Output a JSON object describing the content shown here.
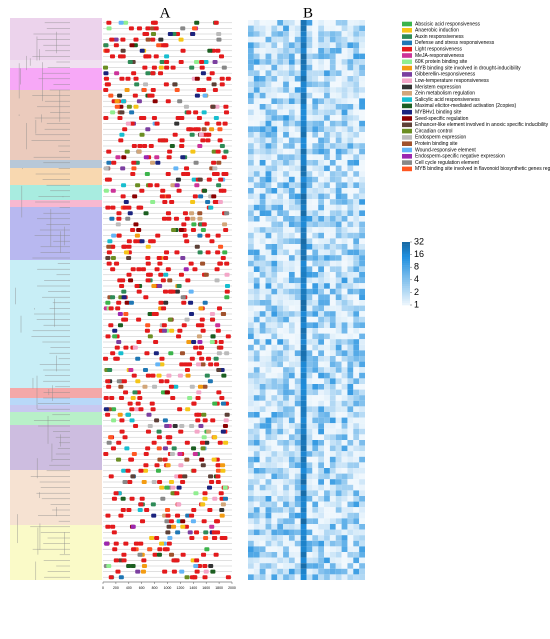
{
  "panel_a": {
    "label": "A",
    "xlim": [
      0,
      2000
    ],
    "xticks": [
      0,
      200,
      400,
      600,
      800,
      1000,
      1200,
      1400,
      1600,
      1800,
      2000
    ]
  },
  "panel_b": {
    "label": "B",
    "scale": {
      "lim": [
        1,
        32
      ],
      "ticks": [
        32,
        16,
        8,
        4,
        2,
        1
      ],
      "log": true
    }
  },
  "legend": [
    {
      "name": "Abscisic acid responsiveness",
      "color": "#3cb44b"
    },
    {
      "name": "Anaerobic induction",
      "color": "#f5c518"
    },
    {
      "name": "Auxin responsiveness",
      "color": "#2e8b57"
    },
    {
      "name": "Defense and stress responsiveness",
      "color": "#1f77b4"
    },
    {
      "name": "Light responsiveness",
      "color": "#e31a1c"
    },
    {
      "name": "MeJA-responsiveness",
      "color": "#cc3399"
    },
    {
      "name": "60K protein binding site",
      "color": "#90ee90"
    },
    {
      "name": "MYB binding site involved in drought-inducibility",
      "color": "#f39c12"
    },
    {
      "name": "Gibberellin-responsiveness",
      "color": "#7b3fa0"
    },
    {
      "name": "Low-temperature responsiveness",
      "color": "#f4a6c8"
    },
    {
      "name": "Meristem expression",
      "color": "#333333"
    },
    {
      "name": "Zein metabolism regulation",
      "color": "#d2a679"
    },
    {
      "name": "Salicylic acid responsiveness",
      "color": "#17becf"
    },
    {
      "name": "Maximal elicitor-mediated activation (2copies)",
      "color": "#1b5e20"
    },
    {
      "name": "MYBHv1 binding site",
      "color": "#1a237e"
    },
    {
      "name": "Seed-specific regulation",
      "color": "#8b0000"
    },
    {
      "name": "Enhancer-like element involved in anoxic specific inducibility",
      "color": "#5d4037"
    },
    {
      "name": "Circadian control",
      "color": "#6b8e23"
    },
    {
      "name": "Endosperm expression",
      "color": "#bbbbbb"
    },
    {
      "name": "Protein binding site",
      "color": "#a0522d"
    },
    {
      "name": "Wound-responsive element",
      "color": "#64b5f6"
    },
    {
      "name": "Endosperm-specific negative expression",
      "color": "#9c27b0"
    },
    {
      "name": "Cell cycle regulation element",
      "color": "#888888"
    },
    {
      "name": "MYB binding site involved in flavonoid biosynthetic genes regulation",
      "color": "#ff5722"
    }
  ]
}
